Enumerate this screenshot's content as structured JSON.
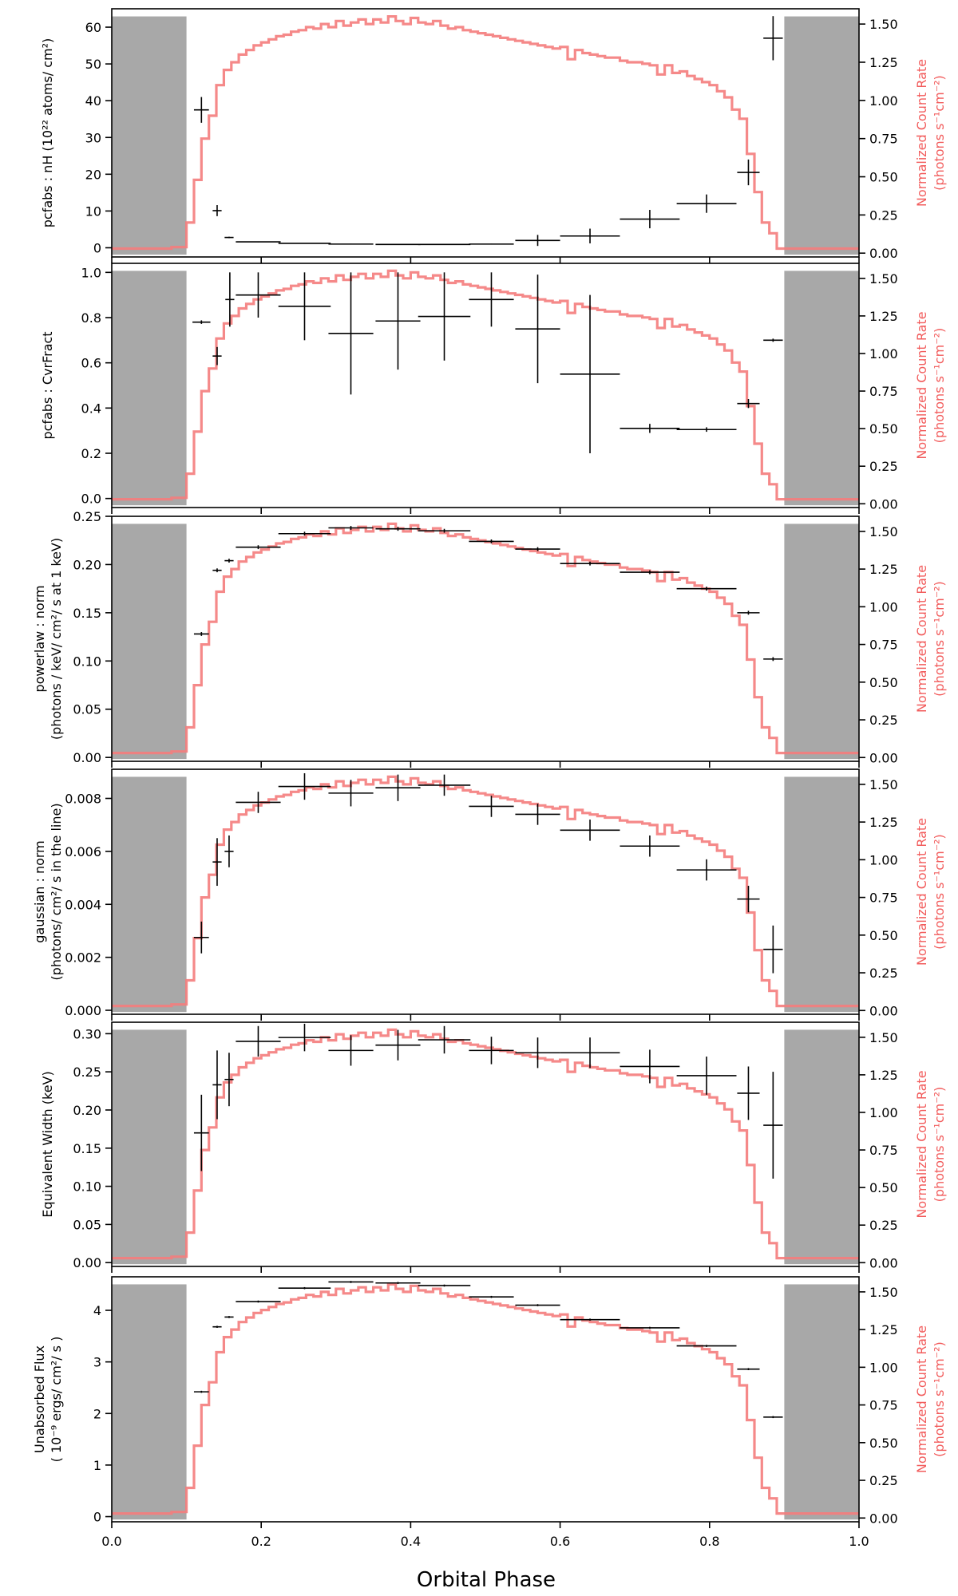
{
  "figure": {
    "xlabel": "Orbital Phase"
  },
  "chart_data": {
    "type": "line",
    "shared_x": {
      "label": "Orbital Phase",
      "range": [
        0.0,
        1.0
      ],
      "ticks": [
        "0.0",
        "0.2",
        "0.4",
        "0.6",
        "0.8",
        "1.0"
      ]
    },
    "count_rate_curve": {
      "axis_label_line1": "Normalized Count Rate",
      "axis_label_line2": "(photons s⁻¹cm⁻²)",
      "color": "#f47c7c",
      "bin_edges": [
        0.0,
        0.02,
        0.04,
        0.06,
        0.08,
        0.1,
        0.11,
        0.12,
        0.13,
        0.14,
        0.15,
        0.16,
        0.17,
        0.18,
        0.19,
        0.2,
        0.21,
        0.22,
        0.23,
        0.24,
        0.25,
        0.26,
        0.27,
        0.28,
        0.29,
        0.3,
        0.31,
        0.32,
        0.33,
        0.34,
        0.35,
        0.36,
        0.37,
        0.38,
        0.39,
        0.4,
        0.41,
        0.42,
        0.43,
        0.44,
        0.45,
        0.46,
        0.47,
        0.48,
        0.49,
        0.5,
        0.51,
        0.52,
        0.53,
        0.54,
        0.55,
        0.56,
        0.57,
        0.58,
        0.59,
        0.6,
        0.61,
        0.62,
        0.63,
        0.64,
        0.65,
        0.66,
        0.67,
        0.68,
        0.69,
        0.7,
        0.71,
        0.72,
        0.73,
        0.74,
        0.75,
        0.76,
        0.77,
        0.78,
        0.79,
        0.8,
        0.81,
        0.82,
        0.83,
        0.84,
        0.85,
        0.86,
        0.87,
        0.88,
        0.89,
        0.9,
        0.92,
        0.94,
        0.96,
        0.98,
        1.0
      ],
      "values": [
        0.03,
        0.03,
        0.03,
        0.03,
        0.04,
        0.2,
        0.48,
        0.75,
        0.9,
        1.1,
        1.2,
        1.25,
        1.3,
        1.33,
        1.36,
        1.38,
        1.4,
        1.42,
        1.43,
        1.45,
        1.46,
        1.48,
        1.47,
        1.5,
        1.48,
        1.52,
        1.49,
        1.51,
        1.53,
        1.5,
        1.53,
        1.51,
        1.55,
        1.52,
        1.5,
        1.54,
        1.51,
        1.5,
        1.52,
        1.49,
        1.47,
        1.48,
        1.46,
        1.45,
        1.44,
        1.43,
        1.42,
        1.41,
        1.4,
        1.39,
        1.38,
        1.37,
        1.36,
        1.35,
        1.34,
        1.35,
        1.27,
        1.33,
        1.31,
        1.3,
        1.29,
        1.28,
        1.28,
        1.26,
        1.25,
        1.25,
        1.24,
        1.23,
        1.17,
        1.23,
        1.18,
        1.19,
        1.16,
        1.14,
        1.12,
        1.1,
        1.06,
        1.02,
        0.94,
        0.88,
        0.65,
        0.4,
        0.2,
        0.13,
        0.03,
        0.03,
        0.03,
        0.03,
        0.03,
        0.03
      ]
    },
    "gray_bands": [
      [
        0.0,
        0.1
      ],
      [
        0.9,
        1.0
      ]
    ],
    "panels": [
      {
        "name": "nH",
        "ylabel_lines": [
          "pcfabs : nH (10²² atoms/ cm²)"
        ],
        "ylim": [
          -2.5,
          65
        ],
        "yticks": [
          0,
          10,
          20,
          30,
          40,
          50,
          60
        ],
        "yticklabels": [
          "0",
          "10",
          "20",
          "30",
          "40",
          "50",
          "60"
        ],
        "points": [
          {
            "x": 0.12,
            "xerr": 0.01,
            "y": 37.5,
            "yerr": 3.5
          },
          {
            "x": 0.141,
            "xerr": 0.006,
            "y": 10.1,
            "yerr": 1.5
          },
          {
            "x": 0.157,
            "xerr": 0.006,
            "y": 2.8,
            "yerr": 0.2
          },
          {
            "x": 0.196,
            "xerr": 0.03,
            "y": 1.6,
            "yerr": 0.1
          },
          {
            "x": 0.258,
            "xerr": 0.035,
            "y": 1.2,
            "yerr": 0.1
          },
          {
            "x": 0.32,
            "xerr": 0.03,
            "y": 1.0,
            "yerr": 0.1
          },
          {
            "x": 0.383,
            "xerr": 0.03,
            "y": 0.9,
            "yerr": 0.1
          },
          {
            "x": 0.445,
            "xerr": 0.035,
            "y": 0.9,
            "yerr": 0.1
          },
          {
            "x": 0.508,
            "xerr": 0.03,
            "y": 1.0,
            "yerr": 0.1
          },
          {
            "x": 0.57,
            "xerr": 0.03,
            "y": 2.0,
            "yerr": 1.5
          },
          {
            "x": 0.64,
            "xerr": 0.04,
            "y": 3.2,
            "yerr": 2.0
          },
          {
            "x": 0.72,
            "xerr": 0.04,
            "y": 7.8,
            "yerr": 2.5
          },
          {
            "x": 0.796,
            "xerr": 0.04,
            "y": 12.0,
            "yerr": 2.5
          },
          {
            "x": 0.852,
            "xerr": 0.015,
            "y": 20.5,
            "yerr": 3.5
          },
          {
            "x": 0.885,
            "xerr": 0.013,
            "y": 57.0,
            "yerr": 6.0
          }
        ]
      },
      {
        "name": "CvrFract",
        "ylabel_lines": [
          "pcfabs : CvrFract"
        ],
        "ylim": [
          -0.04,
          1.04
        ],
        "yticks": [
          0.0,
          0.2,
          0.4,
          0.6,
          0.8,
          1.0
        ],
        "yticklabels": [
          "0.0",
          "0.2",
          "0.4",
          "0.6",
          "0.8",
          "1.0"
        ],
        "points": [
          {
            "x": 0.12,
            "xerr": 0.012,
            "y": 0.78,
            "yerr": 0.008
          },
          {
            "x": 0.141,
            "xerr": 0.006,
            "y": 0.63,
            "yerr": 0.04
          },
          {
            "x": 0.158,
            "xerr": 0.006,
            "y": 0.88,
            "yerr": 0.12
          },
          {
            "x": 0.196,
            "xerr": 0.03,
            "y": 0.9,
            "yerr": 0.1
          },
          {
            "x": 0.258,
            "xerr": 0.035,
            "y": 0.85,
            "yerr": 0.15
          },
          {
            "x": 0.32,
            "xerr": 0.03,
            "y": 0.73,
            "yerr": 0.27
          },
          {
            "x": 0.383,
            "xerr": 0.03,
            "y": 0.785,
            "yerr": 0.215
          },
          {
            "x": 0.445,
            "xerr": 0.035,
            "y": 0.805,
            "yerr": 0.195
          },
          {
            "x": 0.508,
            "xerr": 0.03,
            "y": 0.88,
            "yerr": 0.12
          },
          {
            "x": 0.57,
            "xerr": 0.03,
            "y": 0.75,
            "yerr": 0.24
          },
          {
            "x": 0.64,
            "xerr": 0.04,
            "y": 0.55,
            "yerr": 0.35
          },
          {
            "x": 0.72,
            "xerr": 0.04,
            "y": 0.31,
            "yerr": 0.02
          },
          {
            "x": 0.796,
            "xerr": 0.04,
            "y": 0.305,
            "yerr": 0.01
          },
          {
            "x": 0.852,
            "xerr": 0.015,
            "y": 0.42,
            "yerr": 0.02
          },
          {
            "x": 0.885,
            "xerr": 0.013,
            "y": 0.7,
            "yerr": 0.007
          }
        ]
      },
      {
        "name": "powerlaw_norm",
        "ylabel_lines": [
          "powerlaw : norm",
          "(photons / keV/ cm²/ s at 1 keV)"
        ],
        "ylim": [
          -0.004,
          0.25
        ],
        "yticks": [
          0.0,
          0.05,
          0.1,
          0.15,
          0.2,
          0.25
        ],
        "yticklabels": [
          "0.00",
          "0.05",
          "0.10",
          "0.15",
          "0.20",
          "0.25"
        ],
        "points": [
          {
            "x": 0.12,
            "xerr": 0.01,
            "y": 0.128,
            "yerr": 0.002
          },
          {
            "x": 0.141,
            "xerr": 0.006,
            "y": 0.194,
            "yerr": 0.002
          },
          {
            "x": 0.157,
            "xerr": 0.006,
            "y": 0.204,
            "yerr": 0.002
          },
          {
            "x": 0.196,
            "xerr": 0.03,
            "y": 0.218,
            "yerr": 0.002
          },
          {
            "x": 0.258,
            "xerr": 0.035,
            "y": 0.232,
            "yerr": 0.002
          },
          {
            "x": 0.32,
            "xerr": 0.03,
            "y": 0.238,
            "yerr": 0.002
          },
          {
            "x": 0.383,
            "xerr": 0.03,
            "y": 0.237,
            "yerr": 0.002
          },
          {
            "x": 0.445,
            "xerr": 0.035,
            "y": 0.235,
            "yerr": 0.002
          },
          {
            "x": 0.508,
            "xerr": 0.03,
            "y": 0.224,
            "yerr": 0.002
          },
          {
            "x": 0.57,
            "xerr": 0.03,
            "y": 0.216,
            "yerr": 0.002
          },
          {
            "x": 0.64,
            "xerr": 0.04,
            "y": 0.201,
            "yerr": 0.002
          },
          {
            "x": 0.72,
            "xerr": 0.04,
            "y": 0.192,
            "yerr": 0.002
          },
          {
            "x": 0.796,
            "xerr": 0.04,
            "y": 0.175,
            "yerr": 0.002
          },
          {
            "x": 0.852,
            "xerr": 0.015,
            "y": 0.15,
            "yerr": 0.002
          },
          {
            "x": 0.885,
            "xerr": 0.013,
            "y": 0.102,
            "yerr": 0.002
          }
        ]
      },
      {
        "name": "gaussian_norm",
        "ylabel_lines": [
          "gaussian : norm",
          "(photons/ cm²/ s in the line)"
        ],
        "ylim": [
          -0.00015,
          0.0091
        ],
        "yticks": [
          0.0,
          0.002,
          0.004,
          0.006,
          0.008
        ],
        "yticklabels": [
          "0.000",
          "0.002",
          "0.004",
          "0.006",
          "0.008"
        ],
        "points": [
          {
            "x": 0.12,
            "xerr": 0.01,
            "y": 0.00275,
            "yerr": 0.0006
          },
          {
            "x": 0.141,
            "xerr": 0.006,
            "y": 0.0056,
            "yerr": 0.0009
          },
          {
            "x": 0.157,
            "xerr": 0.006,
            "y": 0.006,
            "yerr": 0.0006
          },
          {
            "x": 0.196,
            "xerr": 0.03,
            "y": 0.00785,
            "yerr": 0.0004
          },
          {
            "x": 0.258,
            "xerr": 0.035,
            "y": 0.00845,
            "yerr": 0.0005
          },
          {
            "x": 0.32,
            "xerr": 0.03,
            "y": 0.0082,
            "yerr": 0.0005
          },
          {
            "x": 0.383,
            "xerr": 0.03,
            "y": 0.0084,
            "yerr": 0.0005
          },
          {
            "x": 0.445,
            "xerr": 0.035,
            "y": 0.0085,
            "yerr": 0.0004
          },
          {
            "x": 0.508,
            "xerr": 0.03,
            "y": 0.0077,
            "yerr": 0.0004
          },
          {
            "x": 0.57,
            "xerr": 0.03,
            "y": 0.0074,
            "yerr": 0.0004
          },
          {
            "x": 0.64,
            "xerr": 0.04,
            "y": 0.0068,
            "yerr": 0.0004
          },
          {
            "x": 0.72,
            "xerr": 0.04,
            "y": 0.0062,
            "yerr": 0.0004
          },
          {
            "x": 0.796,
            "xerr": 0.04,
            "y": 0.0053,
            "yerr": 0.0004
          },
          {
            "x": 0.852,
            "xerr": 0.015,
            "y": 0.0042,
            "yerr": 0.0005
          },
          {
            "x": 0.885,
            "xerr": 0.013,
            "y": 0.0023,
            "yerr": 0.0009
          }
        ]
      },
      {
        "name": "equivalent_width",
        "ylabel_lines": [
          "Equivalent Width (keV)"
        ],
        "ylim": [
          -0.005,
          0.315
        ],
        "yticks": [
          0.0,
          0.05,
          0.1,
          0.15,
          0.2,
          0.25,
          0.3
        ],
        "yticklabels": [
          "0.00",
          "0.05",
          "0.10",
          "0.15",
          "0.20",
          "0.25",
          "0.30"
        ],
        "points": [
          {
            "x": 0.12,
            "xerr": 0.01,
            "y": 0.17,
            "yerr": 0.05
          },
          {
            "x": 0.141,
            "xerr": 0.006,
            "y": 0.233,
            "yerr": 0.045
          },
          {
            "x": 0.157,
            "xerr": 0.006,
            "y": 0.24,
            "yerr": 0.035
          },
          {
            "x": 0.196,
            "xerr": 0.03,
            "y": 0.29,
            "yerr": 0.02
          },
          {
            "x": 0.258,
            "xerr": 0.035,
            "y": 0.295,
            "yerr": 0.018
          },
          {
            "x": 0.32,
            "xerr": 0.03,
            "y": 0.278,
            "yerr": 0.02
          },
          {
            "x": 0.383,
            "xerr": 0.03,
            "y": 0.285,
            "yerr": 0.02
          },
          {
            "x": 0.445,
            "xerr": 0.035,
            "y": 0.292,
            "yerr": 0.018
          },
          {
            "x": 0.508,
            "xerr": 0.03,
            "y": 0.278,
            "yerr": 0.018
          },
          {
            "x": 0.57,
            "xerr": 0.03,
            "y": 0.275,
            "yerr": 0.02
          },
          {
            "x": 0.64,
            "xerr": 0.04,
            "y": 0.275,
            "yerr": 0.02
          },
          {
            "x": 0.72,
            "xerr": 0.04,
            "y": 0.257,
            "yerr": 0.022
          },
          {
            "x": 0.796,
            "xerr": 0.04,
            "y": 0.245,
            "yerr": 0.025
          },
          {
            "x": 0.852,
            "xerr": 0.015,
            "y": 0.222,
            "yerr": 0.035
          },
          {
            "x": 0.885,
            "xerr": 0.013,
            "y": 0.18,
            "yerr": 0.07
          }
        ]
      },
      {
        "name": "unabsorbed_flux",
        "ylabel_lines": [
          "Unabsorbed Flux",
          "( 10⁻⁹ ergs/ cm²/ s )"
        ],
        "ylim": [
          -0.1,
          4.65
        ],
        "yticks": [
          0,
          1,
          2,
          3,
          4
        ],
        "yticklabels": [
          "0",
          "1",
          "2",
          "3",
          "4"
        ],
        "points": [
          {
            "x": 0.12,
            "xerr": 0.01,
            "y": 2.42,
            "yerr": 0.02
          },
          {
            "x": 0.141,
            "xerr": 0.006,
            "y": 3.68,
            "yerr": 0.02
          },
          {
            "x": 0.157,
            "xerr": 0.006,
            "y": 3.87,
            "yerr": 0.02
          },
          {
            "x": 0.196,
            "xerr": 0.03,
            "y": 4.17,
            "yerr": 0.02
          },
          {
            "x": 0.258,
            "xerr": 0.035,
            "y": 4.43,
            "yerr": 0.02
          },
          {
            "x": 0.32,
            "xerr": 0.03,
            "y": 4.55,
            "yerr": 0.02
          },
          {
            "x": 0.383,
            "xerr": 0.03,
            "y": 4.53,
            "yerr": 0.02
          },
          {
            "x": 0.445,
            "xerr": 0.035,
            "y": 4.48,
            "yerr": 0.02
          },
          {
            "x": 0.508,
            "xerr": 0.03,
            "y": 4.26,
            "yerr": 0.02
          },
          {
            "x": 0.57,
            "xerr": 0.03,
            "y": 4.1,
            "yerr": 0.02
          },
          {
            "x": 0.64,
            "xerr": 0.04,
            "y": 3.82,
            "yerr": 0.02
          },
          {
            "x": 0.72,
            "xerr": 0.04,
            "y": 3.66,
            "yerr": 0.02
          },
          {
            "x": 0.796,
            "xerr": 0.04,
            "y": 3.31,
            "yerr": 0.02
          },
          {
            "x": 0.852,
            "xerr": 0.015,
            "y": 2.86,
            "yerr": 0.02
          },
          {
            "x": 0.885,
            "xerr": 0.013,
            "y": 1.93,
            "yerr": 0.02
          }
        ]
      }
    ],
    "right_axis": {
      "ylim": [
        -0.025,
        1.6
      ],
      "yticks": [
        0.0,
        0.25,
        0.5,
        0.75,
        1.0,
        1.25,
        1.5
      ],
      "yticklabels": [
        "0.00",
        "0.25",
        "0.50",
        "0.75",
        "1.00",
        "1.25",
        "1.50"
      ]
    },
    "grid": false
  }
}
